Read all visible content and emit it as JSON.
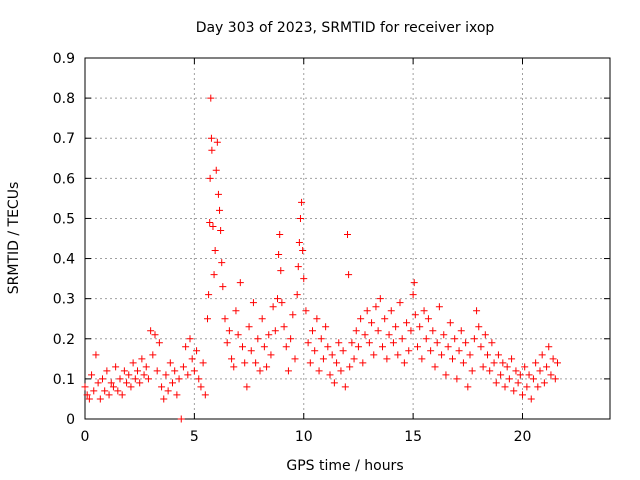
{
  "chart_data": {
    "type": "scatter",
    "title": "Day 303 of 2023, SRMTID for receiver ixop",
    "xlabel": "GPS time / hours",
    "ylabel": "SRMTID / TECUs",
    "xlim": [
      0,
      24
    ],
    "ylim": [
      0,
      0.9
    ],
    "x_ticks": [
      0,
      5,
      10,
      15,
      20
    ],
    "y_ticks": [
      0,
      0.1,
      0.2,
      0.3,
      0.4,
      0.5,
      0.6,
      0.7,
      0.8,
      0.9
    ],
    "x_tick_labels": [
      "0",
      "5",
      "10",
      "15",
      "20"
    ],
    "y_tick_labels": [
      "0",
      "0.1",
      "0.2",
      "0.3",
      "0.4",
      "0.5",
      "0.6",
      "0.7",
      "0.8",
      "0.9"
    ],
    "grid": true,
    "marker": "+",
    "color": "#ff0000",
    "series": [
      {
        "name": "SRMTID",
        "points": [
          [
            0.0,
            0.08
          ],
          [
            0.1,
            0.06
          ],
          [
            0.2,
            0.05
          ],
          [
            0.3,
            0.11
          ],
          [
            0.4,
            0.07
          ],
          [
            0.5,
            0.16
          ],
          [
            0.6,
            0.09
          ],
          [
            0.7,
            0.05
          ],
          [
            0.8,
            0.1
          ],
          [
            0.9,
            0.07
          ],
          [
            1.0,
            0.12
          ],
          [
            1.1,
            0.06
          ],
          [
            1.2,
            0.09
          ],
          [
            1.3,
            0.08
          ],
          [
            1.4,
            0.13
          ],
          [
            1.5,
            0.07
          ],
          [
            1.6,
            0.1
          ],
          [
            1.7,
            0.06
          ],
          [
            1.8,
            0.12
          ],
          [
            1.9,
            0.09
          ],
          [
            2.0,
            0.11
          ],
          [
            2.1,
            0.08
          ],
          [
            2.2,
            0.14
          ],
          [
            2.3,
            0.1
          ],
          [
            2.4,
            0.12
          ],
          [
            2.5,
            0.09
          ],
          [
            2.6,
            0.15
          ],
          [
            2.7,
            0.11
          ],
          [
            2.8,
            0.13
          ],
          [
            2.9,
            0.1
          ],
          [
            3.0,
            0.22
          ],
          [
            3.1,
            0.16
          ],
          [
            3.2,
            0.21
          ],
          [
            3.3,
            0.12
          ],
          [
            3.4,
            0.19
          ],
          [
            3.5,
            0.08
          ],
          [
            3.6,
            0.05
          ],
          [
            3.7,
            0.11
          ],
          [
            3.8,
            0.07
          ],
          [
            3.9,
            0.14
          ],
          [
            4.0,
            0.09
          ],
          [
            4.1,
            0.12
          ],
          [
            4.2,
            0.06
          ],
          [
            4.3,
            0.1
          ],
          [
            4.4,
            0.0
          ],
          [
            4.5,
            0.13
          ],
          [
            4.6,
            0.18
          ],
          [
            4.7,
            0.11
          ],
          [
            4.8,
            0.2
          ],
          [
            4.9,
            0.15
          ],
          [
            5.0,
            0.12
          ],
          [
            5.1,
            0.17
          ],
          [
            5.2,
            0.1
          ],
          [
            5.3,
            0.08
          ],
          [
            5.4,
            0.14
          ],
          [
            5.5,
            0.06
          ],
          [
            5.6,
            0.25
          ],
          [
            5.65,
            0.31
          ],
          [
            5.7,
            0.49
          ],
          [
            5.72,
            0.6
          ],
          [
            5.75,
            0.8
          ],
          [
            5.78,
            0.7
          ],
          [
            5.8,
            0.67
          ],
          [
            5.85,
            0.48
          ],
          [
            5.9,
            0.36
          ],
          [
            5.95,
            0.42
          ],
          [
            6.0,
            0.62
          ],
          [
            6.05,
            0.69
          ],
          [
            6.1,
            0.56
          ],
          [
            6.15,
            0.52
          ],
          [
            6.2,
            0.47
          ],
          [
            6.25,
            0.39
          ],
          [
            6.3,
            0.33
          ],
          [
            6.4,
            0.25
          ],
          [
            6.5,
            0.19
          ],
          [
            6.6,
            0.22
          ],
          [
            6.7,
            0.15
          ],
          [
            6.8,
            0.13
          ],
          [
            6.9,
            0.27
          ],
          [
            7.0,
            0.21
          ],
          [
            7.1,
            0.34
          ],
          [
            7.2,
            0.18
          ],
          [
            7.3,
            0.14
          ],
          [
            7.4,
            0.08
          ],
          [
            7.5,
            0.23
          ],
          [
            7.6,
            0.17
          ],
          [
            7.7,
            0.29
          ],
          [
            7.8,
            0.14
          ],
          [
            7.9,
            0.2
          ],
          [
            8.0,
            0.12
          ],
          [
            8.1,
            0.25
          ],
          [
            8.2,
            0.18
          ],
          [
            8.3,
            0.13
          ],
          [
            8.4,
            0.21
          ],
          [
            8.5,
            0.16
          ],
          [
            8.6,
            0.28
          ],
          [
            8.7,
            0.22
          ],
          [
            8.8,
            0.3
          ],
          [
            8.85,
            0.41
          ],
          [
            8.9,
            0.46
          ],
          [
            8.95,
            0.37
          ],
          [
            9.0,
            0.29
          ],
          [
            9.1,
            0.23
          ],
          [
            9.2,
            0.18
          ],
          [
            9.3,
            0.12
          ],
          [
            9.4,
            0.2
          ],
          [
            9.5,
            0.26
          ],
          [
            9.6,
            0.15
          ],
          [
            9.7,
            0.31
          ],
          [
            9.75,
            0.38
          ],
          [
            9.8,
            0.44
          ],
          [
            9.85,
            0.5
          ],
          [
            9.9,
            0.54
          ],
          [
            9.95,
            0.42
          ],
          [
            10.0,
            0.35
          ],
          [
            10.1,
            0.27
          ],
          [
            10.2,
            0.19
          ],
          [
            10.3,
            0.14
          ],
          [
            10.4,
            0.22
          ],
          [
            10.5,
            0.17
          ],
          [
            10.6,
            0.25
          ],
          [
            10.7,
            0.12
          ],
          [
            10.8,
            0.2
          ],
          [
            10.9,
            0.15
          ],
          [
            11.0,
            0.23
          ],
          [
            11.1,
            0.18
          ],
          [
            11.2,
            0.11
          ],
          [
            11.3,
            0.16
          ],
          [
            11.4,
            0.09
          ],
          [
            11.5,
            0.14
          ],
          [
            11.6,
            0.19
          ],
          [
            11.7,
            0.12
          ],
          [
            11.8,
            0.17
          ],
          [
            11.9,
            0.08
          ],
          [
            12.0,
            0.46
          ],
          [
            12.05,
            0.36
          ],
          [
            12.1,
            0.13
          ],
          [
            12.2,
            0.19
          ],
          [
            12.3,
            0.15
          ],
          [
            12.4,
            0.22
          ],
          [
            12.5,
            0.18
          ],
          [
            12.6,
            0.25
          ],
          [
            12.7,
            0.14
          ],
          [
            12.8,
            0.21
          ],
          [
            12.9,
            0.27
          ],
          [
            13.0,
            0.19
          ],
          [
            13.1,
            0.24
          ],
          [
            13.2,
            0.16
          ],
          [
            13.3,
            0.28
          ],
          [
            13.4,
            0.22
          ],
          [
            13.5,
            0.3
          ],
          [
            13.6,
            0.18
          ],
          [
            13.7,
            0.25
          ],
          [
            13.8,
            0.15
          ],
          [
            13.9,
            0.21
          ],
          [
            14.0,
            0.27
          ],
          [
            14.1,
            0.19
          ],
          [
            14.2,
            0.23
          ],
          [
            14.3,
            0.16
          ],
          [
            14.4,
            0.29
          ],
          [
            14.5,
            0.2
          ],
          [
            14.6,
            0.14
          ],
          [
            14.7,
            0.24
          ],
          [
            14.8,
            0.17
          ],
          [
            14.9,
            0.22
          ],
          [
            15.0,
            0.31
          ],
          [
            15.05,
            0.34
          ],
          [
            15.1,
            0.26
          ],
          [
            15.2,
            0.18
          ],
          [
            15.3,
            0.23
          ],
          [
            15.4,
            0.15
          ],
          [
            15.5,
            0.27
          ],
          [
            15.6,
            0.2
          ],
          [
            15.7,
            0.25
          ],
          [
            15.8,
            0.17
          ],
          [
            15.9,
            0.22
          ],
          [
            16.0,
            0.13
          ],
          [
            16.1,
            0.19
          ],
          [
            16.2,
            0.28
          ],
          [
            16.3,
            0.16
          ],
          [
            16.4,
            0.21
          ],
          [
            16.5,
            0.11
          ],
          [
            16.6,
            0.18
          ],
          [
            16.7,
            0.24
          ],
          [
            16.8,
            0.15
          ],
          [
            16.9,
            0.2
          ],
          [
            17.0,
            0.1
          ],
          [
            17.1,
            0.17
          ],
          [
            17.2,
            0.22
          ],
          [
            17.3,
            0.14
          ],
          [
            17.4,
            0.19
          ],
          [
            17.5,
            0.08
          ],
          [
            17.6,
            0.16
          ],
          [
            17.7,
            0.12
          ],
          [
            17.8,
            0.2
          ],
          [
            17.9,
            0.27
          ],
          [
            18.0,
            0.23
          ],
          [
            18.1,
            0.18
          ],
          [
            18.2,
            0.13
          ],
          [
            18.3,
            0.21
          ],
          [
            18.4,
            0.16
          ],
          [
            18.5,
            0.12
          ],
          [
            18.6,
            0.19
          ],
          [
            18.7,
            0.14
          ],
          [
            18.8,
            0.09
          ],
          [
            18.9,
            0.16
          ],
          [
            19.0,
            0.11
          ],
          [
            19.1,
            0.14
          ],
          [
            19.2,
            0.08
          ],
          [
            19.3,
            0.13
          ],
          [
            19.4,
            0.1
          ],
          [
            19.5,
            0.15
          ],
          [
            19.6,
            0.07
          ],
          [
            19.7,
            0.12
          ],
          [
            19.8,
            0.09
          ],
          [
            19.9,
            0.11
          ],
          [
            20.0,
            0.06
          ],
          [
            20.1,
            0.13
          ],
          [
            20.2,
            0.08
          ],
          [
            20.3,
            0.11
          ],
          [
            20.4,
            0.05
          ],
          [
            20.5,
            0.1
          ],
          [
            20.6,
            0.14
          ],
          [
            20.7,
            0.08
          ],
          [
            20.8,
            0.12
          ],
          [
            20.9,
            0.16
          ],
          [
            21.0,
            0.09
          ],
          [
            21.1,
            0.13
          ],
          [
            21.2,
            0.18
          ],
          [
            21.3,
            0.11
          ],
          [
            21.4,
            0.15
          ],
          [
            21.5,
            0.1
          ],
          [
            21.6,
            0.14
          ]
        ]
      }
    ]
  }
}
